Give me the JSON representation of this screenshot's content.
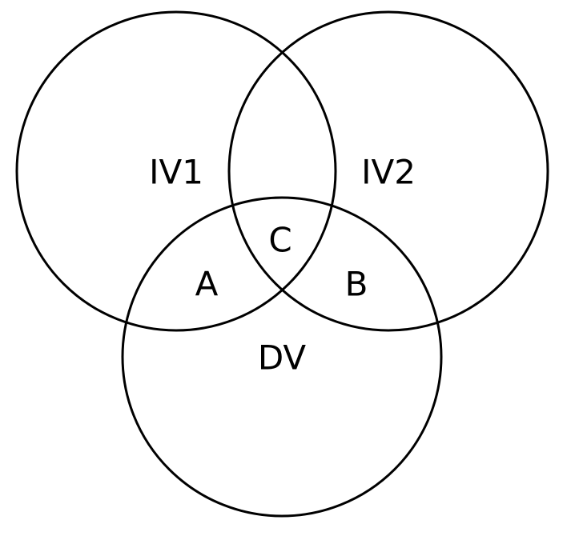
{
  "diagram": {
    "type": "venn",
    "circles": [
      {
        "id": "iv1",
        "label": "IV1"
      },
      {
        "id": "iv2",
        "label": "IV2"
      },
      {
        "id": "dv",
        "label": "DV"
      }
    ],
    "regions": {
      "a": "A",
      "b": "B",
      "c": "C"
    },
    "stroke_color": "#000000",
    "background_color": "#ffffff"
  }
}
